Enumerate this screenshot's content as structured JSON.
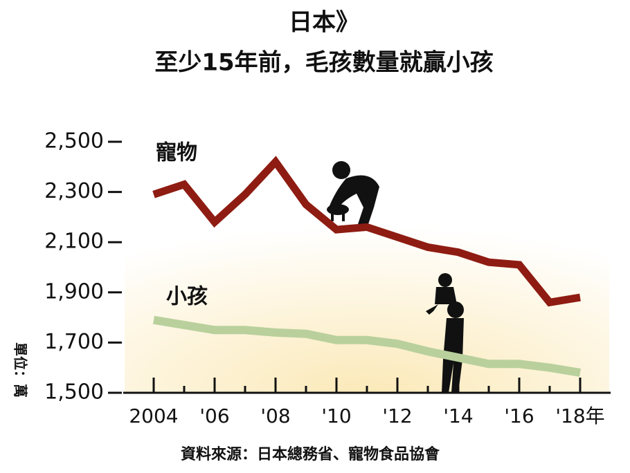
{
  "chart_data": {
    "type": "line",
    "title": "日本》",
    "subtitle": "至少15年前，毛孩數量就贏小孩",
    "y_label": "單位：萬",
    "source": "資料來源：日本總務省、寵物食品協會",
    "x": [
      2004,
      2005,
      2006,
      2007,
      2008,
      2009,
      2010,
      2011,
      2012,
      2013,
      2014,
      2015,
      2016,
      2017,
      2018
    ],
    "series": [
      {
        "name": "寵物",
        "color": "#8e1c12",
        "values": [
          2290,
          2330,
          2180,
          2290,
          2420,
          2250,
          2150,
          2160,
          2120,
          2080,
          2060,
          2020,
          2010,
          1860,
          1880
        ]
      },
      {
        "name": "小孩",
        "color": "#b9d09c",
        "values": [
          1790,
          1770,
          1750,
          1750,
          1740,
          1735,
          1710,
          1710,
          1695,
          1665,
          1640,
          1615,
          1615,
          1600,
          1580
        ]
      }
    ],
    "xlim": [
      2003,
      2019
    ],
    "xticks": [
      {
        "value": 2004,
        "label": "2004"
      },
      {
        "value": 2006,
        "label": "'06"
      },
      {
        "value": 2008,
        "label": "'08"
      },
      {
        "value": 2010,
        "label": "'10"
      },
      {
        "value": 2012,
        "label": "'12"
      },
      {
        "value": 2014,
        "label": "'14"
      },
      {
        "value": 2016,
        "label": "'16"
      },
      {
        "value": 2018,
        "label": "'18年"
      }
    ],
    "ylim": [
      1500,
      2500
    ],
    "yticks": [
      {
        "value": 1500,
        "label": "1,500"
      },
      {
        "value": 1700,
        "label": "1,700"
      },
      {
        "value": 1900,
        "label": "1,900"
      },
      {
        "value": 2100,
        "label": "2,100"
      },
      {
        "value": 2300,
        "label": "2,300"
      },
      {
        "value": 2500,
        "label": "2,500"
      }
    ]
  }
}
